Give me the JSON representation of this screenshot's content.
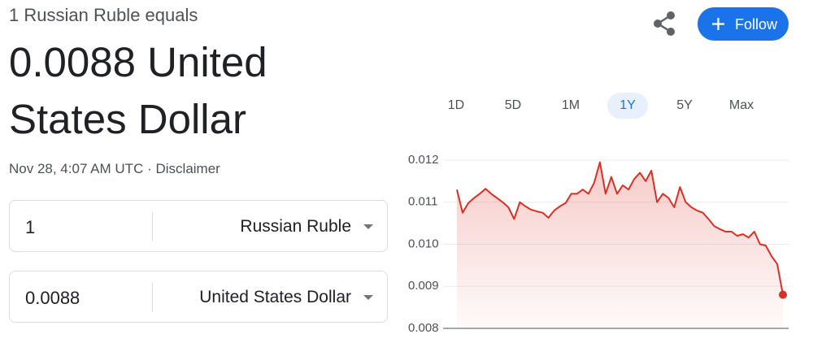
{
  "header": {
    "subtitle": "1 Russian Ruble equals",
    "title": "0.0088 United States Dollar",
    "timestamp": "Nov 28, 4:07 AM UTC",
    "separator": "·",
    "disclaimer": "Disclaimer",
    "follow": "Follow"
  },
  "converter": {
    "rows": [
      {
        "amount": "1",
        "currency": "Russian Ruble"
      },
      {
        "amount": "0.0088",
        "currency": "United States Dollar"
      }
    ]
  },
  "ranges": {
    "labels": [
      "1D",
      "5D",
      "1M",
      "1Y",
      "5Y",
      "Max"
    ],
    "selected": 3
  },
  "chart_data": {
    "type": "line",
    "color": "#d93025",
    "values": [
      0.0113,
      0.01075,
      0.01098,
      0.0111,
      0.0112,
      0.01132,
      0.0112,
      0.0111,
      0.011,
      0.01088,
      0.0106,
      0.011,
      0.0109,
      0.01082,
      0.01078,
      0.01075,
      0.01063,
      0.0108,
      0.0109,
      0.01098,
      0.0112,
      0.0112,
      0.0113,
      0.0112,
      0.01146,
      0.01195,
      0.0112,
      0.0116,
      0.0112,
      0.0114,
      0.0113,
      0.01155,
      0.0117,
      0.0115,
      0.01175,
      0.011,
      0.0112,
      0.0111,
      0.01088,
      0.01136,
      0.011,
      0.01088,
      0.0108,
      0.01075,
      0.0106,
      0.01043,
      0.01036,
      0.0103,
      0.0103,
      0.0102,
      0.01024,
      0.01016,
      0.0103,
      0.01,
      0.00997,
      0.00972,
      0.00953,
      0.0088
    ],
    "ylim": [
      0.008,
      0.012
    ],
    "yticks": [
      0.008,
      0.009,
      {
        "value": 0.01,
        "label": "0.010"
      },
      0.011,
      0.012
    ],
    "grid": true
  }
}
